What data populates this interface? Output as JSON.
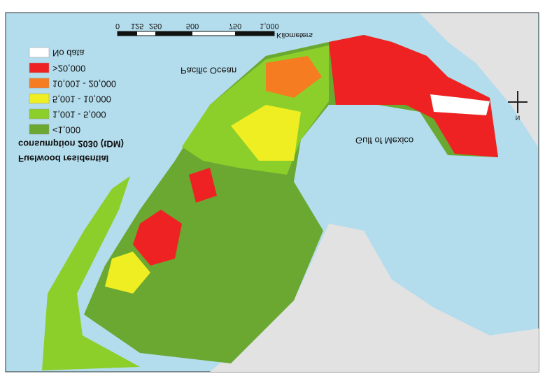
{
  "map": {
    "title_lines": [
      "Fuelwood residential",
      "consumption 2030 (tDM)"
    ],
    "legend": {
      "items": [
        {
          "label": "No data",
          "color": "#ffffff"
        },
        {
          "label": ">20,000",
          "color": "#ee2222"
        },
        {
          "label": "10,001 - 20,000",
          "color": "#f57c20"
        },
        {
          "label": "5,001 - 10,000",
          "color": "#eeee22"
        },
        {
          "label": "1,001 - 5,000",
          "color": "#8ccf2a"
        },
        {
          "label": "<1,000",
          "color": "#6aa832"
        }
      ]
    },
    "scale_bar": {
      "ticks": [
        "0",
        "125",
        "250",
        "500",
        "750",
        "1,000"
      ],
      "unit": "Kilometers"
    },
    "labels": {
      "pacific": "Pacific Ocean",
      "gulf": "Gulf of Mexico",
      "north": "N"
    }
  }
}
